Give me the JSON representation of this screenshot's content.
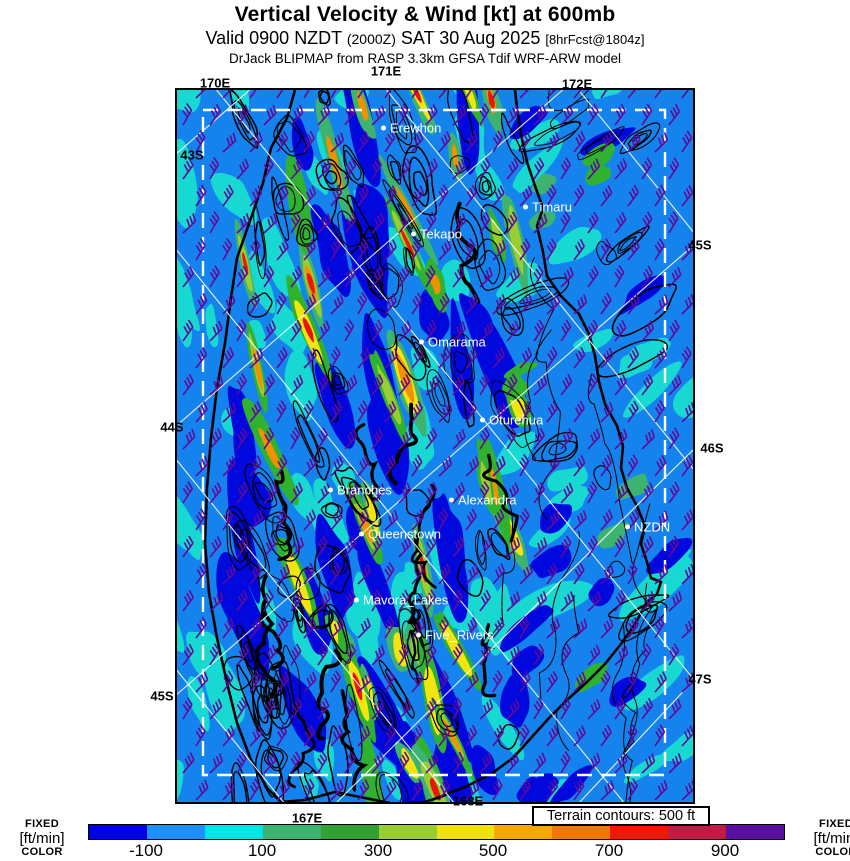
{
  "header": {
    "title": "Vertical Velocity & Wind [kt] at 600mb",
    "valid_prefix": "Valid 0900 NZDT ",
    "valid_zulu": "(2000Z)",
    "valid_date": " SAT 30 Aug 2025 ",
    "valid_fcst": "[8hrFcst@1804z]",
    "model_line": "DrJack BLIPMAP from RASP 3.3km GFSA Tdif WRF-ARW model"
  },
  "map": {
    "graticule": {
      "top": [
        "170E",
        "171E",
        "172E"
      ],
      "bottom": [
        "167E",
        "168E"
      ],
      "left": [
        "43S",
        "44S",
        "45S"
      ],
      "right": [
        "45S",
        "46S",
        "47S"
      ]
    },
    "places": [
      "Erewhon",
      "Timaru",
      "Tekapo",
      "Omarama",
      "Oturehua",
      "Branches",
      "Alexandra",
      "Queenstown",
      "NZDN",
      "Mavora_Lakes",
      "Five_Rivers"
    ],
    "terrain_legend": "Terrain contours: 500 ft",
    "sea_color": "#1583ee",
    "wave_colors": {
      "cyan": "#17d9d2",
      "dark_blue": "#0008dd",
      "green": "#2fb22f",
      "sea_green": "#3cb371",
      "yellow_green": "#9acd32",
      "yellow": "#f2e50e",
      "orange": "#f29100",
      "red": "#ee1500"
    },
    "wind_barb_color": "#62099a"
  },
  "colorbar": {
    "fixed_word": "FIXED",
    "unit_word": "[ft/min]",
    "color_word": "COLOR",
    "ticks": [
      "-100",
      "100",
      "300",
      "500",
      "700",
      "900"
    ],
    "tick_positions_pct": [
      8.35,
      25.0,
      41.7,
      58.3,
      75.0,
      91.6
    ],
    "segments": [
      "#0000e8",
      "#1e90ff",
      "#00e5e5",
      "#3cb371",
      "#32a032",
      "#9acd32",
      "#f0e10c",
      "#f5a800",
      "#f07800",
      "#f01800",
      "#c01a45",
      "#5a0fa0"
    ],
    "value_min": -200,
    "value_max": 1000,
    "value_step_per_segment": 100
  }
}
